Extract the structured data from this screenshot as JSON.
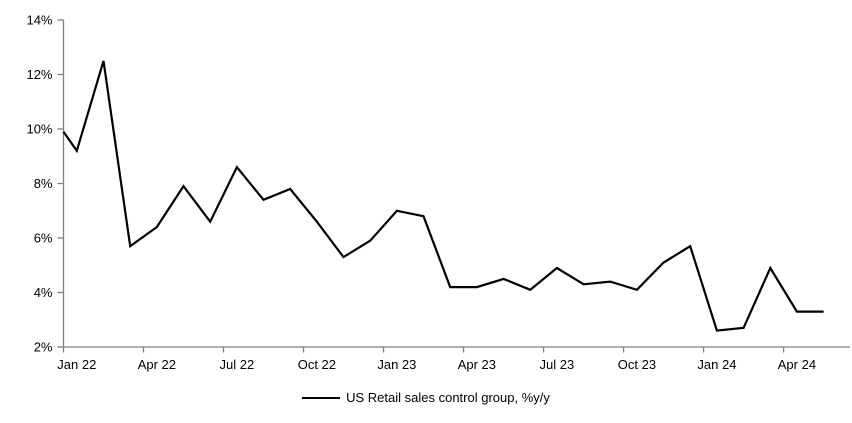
{
  "chart_data": {
    "type": "line",
    "title": "",
    "xlabel": "",
    "ylabel": "",
    "x": [
      "Jan 22",
      "Feb 22",
      "Mar 22",
      "Apr 22",
      "May 22",
      "Jun 22",
      "Jul 22",
      "Aug 22",
      "Sep 22",
      "Oct 22",
      "Nov 22",
      "Dec 22",
      "Jan 23",
      "Feb 23",
      "Mar 23",
      "Apr 23",
      "May 23",
      "Jun 23",
      "Jul 23",
      "Aug 23",
      "Sep 23",
      "Oct 23",
      "Nov 23",
      "Dec 23",
      "Jan 24",
      "Feb 24",
      "Mar 24",
      "Apr 24",
      "May 24"
    ],
    "series": [
      {
        "name": "US Retail sales control group, %y/y",
        "color": "#000000",
        "left_edge_start_value": 9.9,
        "values": [
          9.2,
          12.5,
          5.7,
          6.4,
          7.9,
          6.6,
          8.6,
          7.4,
          7.8,
          6.6,
          5.3,
          5.9,
          7.0,
          6.8,
          4.2,
          4.2,
          4.5,
          4.1,
          4.9,
          4.3,
          4.4,
          4.1,
          5.1,
          5.7,
          2.6,
          2.7,
          4.9,
          3.3,
          3.3
        ]
      }
    ],
    "ylim": [
      2,
      14
    ],
    "y_tick_step": 2,
    "y_tick_labels_top_to_bottom": [
      "14%",
      "12%",
      "10%",
      "8%",
      "6%",
      "4%",
      "2%"
    ],
    "y_tick_label_suffix": "%",
    "x_tick_labels": [
      "Jan 22",
      "Apr 22",
      "Jul 22",
      "Oct 22",
      "Jan 23",
      "Apr 23",
      "Jul 23",
      "Oct 23",
      "Jan 24",
      "Apr 24"
    ],
    "x_tick_every_n_months": 3,
    "grid": false,
    "legend_position": "bottom-center",
    "axis_color": "#808080",
    "line_color": "#000000",
    "background": "#ffffff"
  }
}
